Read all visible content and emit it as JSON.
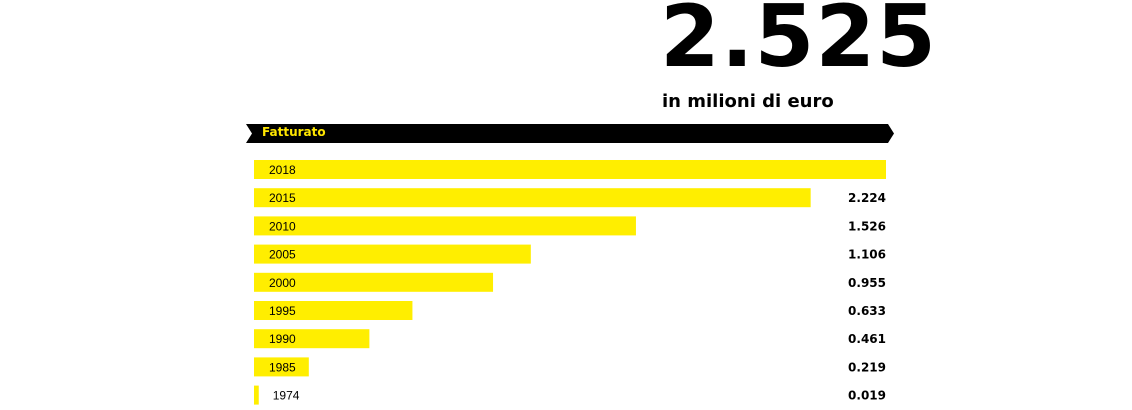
{
  "header": {
    "headline_value": "2.525",
    "unit_label": "in milioni di euro"
  },
  "banner": {
    "label": "Fatturato"
  },
  "colors": {
    "bar": "#ffee00",
    "banner_bg": "#000000",
    "banner_text": "#ffe600",
    "text": "#000000"
  },
  "chart_data": {
    "type": "bar",
    "orientation": "horizontal",
    "title": "Fatturato",
    "unit": "in milioni di euro",
    "categories": [
      "2018",
      "2015",
      "2010",
      "2005",
      "2000",
      "1995",
      "1990",
      "1985",
      "1974"
    ],
    "values": [
      2.525,
      2.224,
      1.526,
      1.106,
      0.955,
      0.633,
      0.461,
      0.219,
      0.019
    ],
    "value_labels": [
      "",
      "2.224",
      "1.526",
      "1.106",
      "0.955",
      "0.633",
      "0.461",
      "0.219",
      "0.019"
    ],
    "xlim": [
      0,
      2.525
    ],
    "grid": false,
    "legend": "none"
  }
}
